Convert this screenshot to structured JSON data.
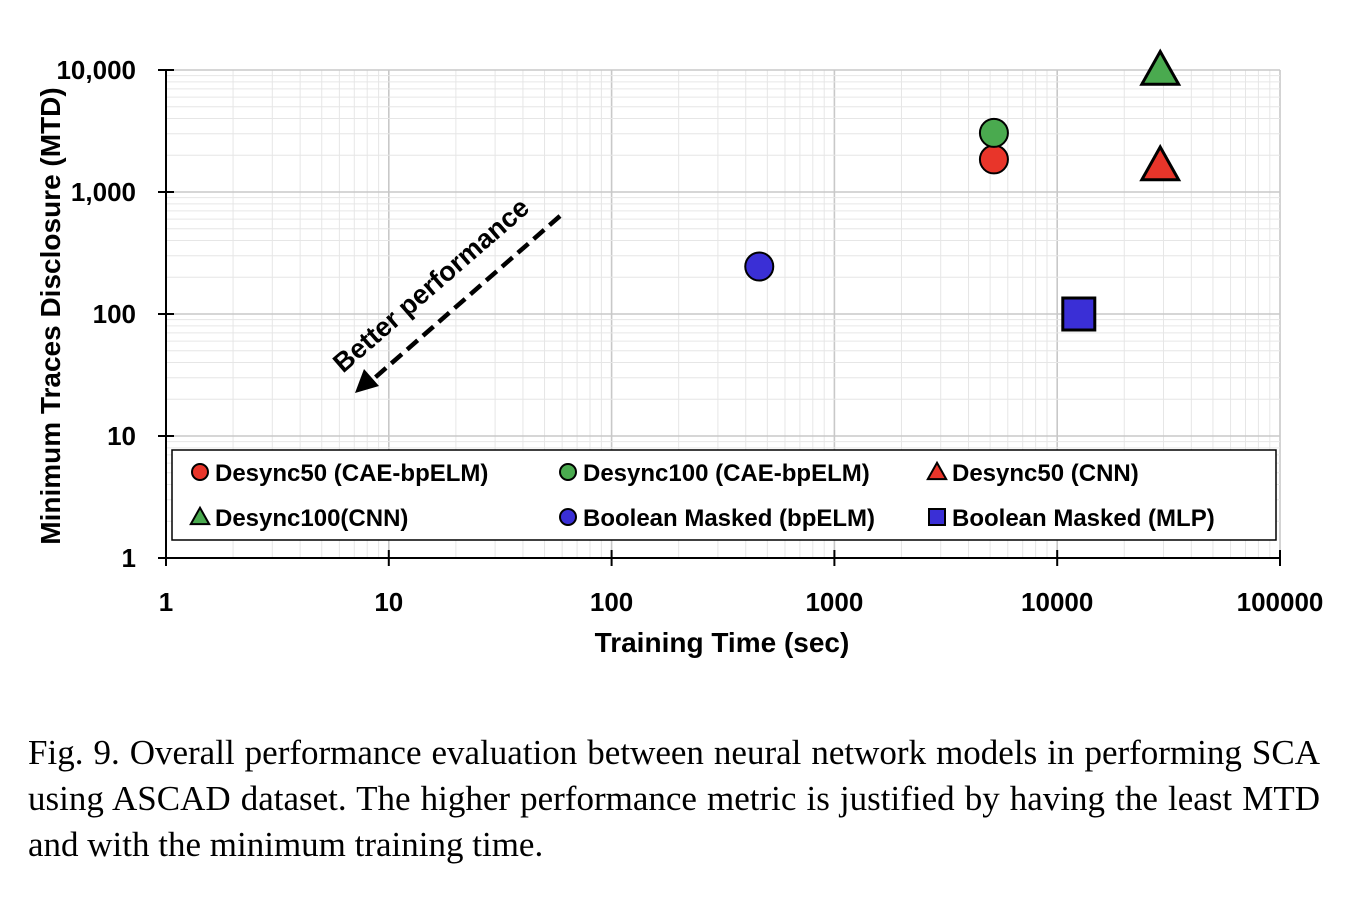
{
  "chart_data": {
    "type": "scatter",
    "xlabel": "Training Time (sec)",
    "ylabel": "Minimum Traces Disclosure (MTD)",
    "x_scale": "log",
    "y_scale": "log",
    "xlim": [
      1,
      100000
    ],
    "ylim": [
      1,
      10000
    ],
    "x_tick_labels": [
      "1",
      "10",
      "100",
      "1000",
      "10000",
      "100000"
    ],
    "y_tick_labels": [
      "1",
      "10",
      "100",
      "1,000",
      "10,000"
    ],
    "grid": true,
    "legend_placement": "bottom",
    "annotation": "Better performance",
    "series": [
      {
        "name": "Desync50 (CAE-bpELM)",
        "marker": "circle",
        "color": "#e8352a",
        "points": [
          {
            "x": 5200,
            "y": 1850
          }
        ]
      },
      {
        "name": "Desync100 (CAE-bpELM)",
        "marker": "circle",
        "color": "#4aaa4f",
        "points": [
          {
            "x": 5200,
            "y": 3050
          }
        ]
      },
      {
        "name": "Desync50 (CNN)",
        "marker": "triangle",
        "color": "#e8352a",
        "points": [
          {
            "x": 29000,
            "y": 1650
          }
        ]
      },
      {
        "name": "Desync100(CNN)",
        "marker": "triangle",
        "color": "#4aaa4f",
        "points": [
          {
            "x": 29000,
            "y": 10000
          }
        ]
      },
      {
        "name": "Boolean Masked (bpELM)",
        "marker": "circle",
        "color": "#3a2fd6",
        "points": [
          {
            "x": 460,
            "y": 245
          }
        ]
      },
      {
        "name": "Boolean Masked (MLP)",
        "marker": "square",
        "color": "#3a2fd6",
        "points": [
          {
            "x": 12500,
            "y": 100
          }
        ]
      }
    ]
  },
  "caption": "Fig. 9.  Overall performance evaluation between neural network models in performing SCA using ASCAD dataset. The higher performance metric is justified by having the least MTD and with the minimum training time."
}
